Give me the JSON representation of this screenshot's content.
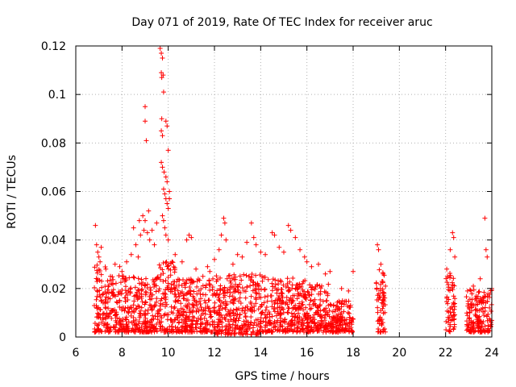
{
  "chart_data": {
    "type": "scatter",
    "title": "Day 071 of 2019, Rate Of TEC Index for receiver aruc",
    "xlabel": "GPS time / hours",
    "ylabel": "ROTI / TECUs",
    "xlim": [
      6,
      24
    ],
    "ylim": [
      0,
      0.12
    ],
    "xticks": [
      6,
      8,
      10,
      12,
      14,
      16,
      18,
      20,
      22,
      24
    ],
    "yticks": [
      0,
      0.02,
      0.04,
      0.06,
      0.08,
      0.1,
      0.12
    ],
    "ytick_labels": [
      "0",
      "0.02",
      "0.04",
      "0.06",
      "0.08",
      "0.1",
      "0.12"
    ],
    "grid": true,
    "marker": "+",
    "color": "#ff0000",
    "data_coverage": [
      [
        6.8,
        18.0
      ],
      [
        19.0,
        19.4
      ],
      [
        22.0,
        22.4
      ],
      [
        22.9,
        24.0
      ]
    ],
    "series": [
      {
        "name": "ROTI",
        "points": [
          [
            6.85,
            0.046
          ],
          [
            6.9,
            0.038
          ],
          [
            6.95,
            0.035
          ],
          [
            7.0,
            0.033
          ],
          [
            7.05,
            0.031
          ],
          [
            7.1,
            0.037
          ],
          [
            7.3,
            0.028
          ],
          [
            7.5,
            0.025
          ],
          [
            7.7,
            0.03
          ],
          [
            7.9,
            0.029
          ],
          [
            8.0,
            0.027
          ],
          [
            8.2,
            0.031
          ],
          [
            8.4,
            0.034
          ],
          [
            8.5,
            0.045
          ],
          [
            8.6,
            0.038
          ],
          [
            8.7,
            0.033
          ],
          [
            8.75,
            0.048
          ],
          [
            8.8,
            0.042
          ],
          [
            8.9,
            0.05
          ],
          [
            8.95,
            0.044
          ],
          [
            9.0,
            0.095
          ],
          [
            9.0,
            0.089
          ],
          [
            9.05,
            0.081
          ],
          [
            9.0,
            0.048
          ],
          [
            9.1,
            0.043
          ],
          [
            9.15,
            0.052
          ],
          [
            9.2,
            0.04
          ],
          [
            9.3,
            0.044
          ],
          [
            9.4,
            0.038
          ],
          [
            9.5,
            0.047
          ],
          [
            9.65,
            0.119
          ],
          [
            9.7,
            0.117
          ],
          [
            9.75,
            0.115
          ],
          [
            9.7,
            0.109
          ],
          [
            9.72,
            0.107
          ],
          [
            9.78,
            0.108
          ],
          [
            9.8,
            0.101
          ],
          [
            9.72,
            0.09
          ],
          [
            9.7,
            0.085
          ],
          [
            9.75,
            0.083
          ],
          [
            9.7,
            0.072
          ],
          [
            9.75,
            0.07
          ],
          [
            9.82,
            0.068
          ],
          [
            9.9,
            0.066
          ],
          [
            9.95,
            0.064
          ],
          [
            9.8,
            0.061
          ],
          [
            9.85,
            0.059
          ],
          [
            9.9,
            0.057
          ],
          [
            9.95,
            0.055
          ],
          [
            10.0,
            0.053
          ],
          [
            9.75,
            0.05
          ],
          [
            9.8,
            0.048
          ],
          [
            9.85,
            0.045
          ],
          [
            9.9,
            0.042
          ],
          [
            10.0,
            0.04
          ],
          [
            9.9,
            0.089
          ],
          [
            9.95,
            0.087
          ],
          [
            10.0,
            0.077
          ],
          [
            10.05,
            0.06
          ],
          [
            10.05,
            0.057
          ],
          [
            10.3,
            0.034
          ],
          [
            10.6,
            0.031
          ],
          [
            10.8,
            0.04
          ],
          [
            10.9,
            0.042
          ],
          [
            11.0,
            0.041
          ],
          [
            11.2,
            0.028
          ],
          [
            11.5,
            0.025
          ],
          [
            11.7,
            0.029
          ],
          [
            11.8,
            0.027
          ],
          [
            12.0,
            0.032
          ],
          [
            12.2,
            0.036
          ],
          [
            12.3,
            0.042
          ],
          [
            12.4,
            0.049
          ],
          [
            12.45,
            0.047
          ],
          [
            12.5,
            0.04
          ],
          [
            12.8,
            0.03
          ],
          [
            13.0,
            0.034
          ],
          [
            13.2,
            0.033
          ],
          [
            13.4,
            0.039
          ],
          [
            13.6,
            0.047
          ],
          [
            13.7,
            0.041
          ],
          [
            13.8,
            0.038
          ],
          [
            14.0,
            0.035
          ],
          [
            14.2,
            0.034
          ],
          [
            14.5,
            0.043
          ],
          [
            14.6,
            0.042
          ],
          [
            14.8,
            0.037
          ],
          [
            15.0,
            0.035
          ],
          [
            15.2,
            0.046
          ],
          [
            15.3,
            0.044
          ],
          [
            15.5,
            0.041
          ],
          [
            15.7,
            0.036
          ],
          [
            15.9,
            0.033
          ],
          [
            16.0,
            0.031
          ],
          [
            16.2,
            0.029
          ],
          [
            16.5,
            0.03
          ],
          [
            16.8,
            0.026
          ],
          [
            17.0,
            0.027
          ],
          [
            17.5,
            0.02
          ],
          [
            17.8,
            0.019
          ],
          [
            18.0,
            0.027
          ],
          [
            19.05,
            0.038
          ],
          [
            19.1,
            0.036
          ],
          [
            19.2,
            0.03
          ],
          [
            19.3,
            0.026
          ],
          [
            19.4,
            0.021
          ],
          [
            22.05,
            0.028
          ],
          [
            22.2,
            0.036
          ],
          [
            22.3,
            0.043
          ],
          [
            22.35,
            0.041
          ],
          [
            22.4,
            0.033
          ],
          [
            22.95,
            0.019
          ],
          [
            23.2,
            0.021
          ],
          [
            23.5,
            0.024
          ],
          [
            23.7,
            0.049
          ],
          [
            23.75,
            0.036
          ],
          [
            23.8,
            0.033
          ],
          [
            24.0,
            0.02
          ]
        ],
        "dense_bands": [
          {
            "x": [
              6.8,
              7.3
            ],
            "y": [
              0.002,
              0.03
            ]
          },
          {
            "x": [
              7.3,
              9.6
            ],
            "y": [
              0.002,
              0.026
            ]
          },
          {
            "x": [
              9.6,
              10.3
            ],
            "y": [
              0.002,
              0.032
            ]
          },
          {
            "x": [
              10.3,
              12.0
            ],
            "y": [
              0.002,
              0.024
            ]
          },
          {
            "x": [
              12.0,
              14.0
            ],
            "y": [
              0.001,
              0.026
            ]
          },
          {
            "x": [
              14.0,
              16.0
            ],
            "y": [
              0.002,
              0.025
            ]
          },
          {
            "x": [
              16.0,
              17.0
            ],
            "y": [
              0.002,
              0.022
            ]
          },
          {
            "x": [
              17.0,
              18.0
            ],
            "y": [
              0.002,
              0.015
            ]
          },
          {
            "x": [
              19.0,
              19.4
            ],
            "y": [
              0.002,
              0.028
            ]
          },
          {
            "x": [
              22.0,
              22.4
            ],
            "y": [
              0.002,
              0.027
            ]
          },
          {
            "x": [
              22.9,
              24.0
            ],
            "y": [
              0.002,
              0.02
            ]
          }
        ]
      }
    ]
  }
}
